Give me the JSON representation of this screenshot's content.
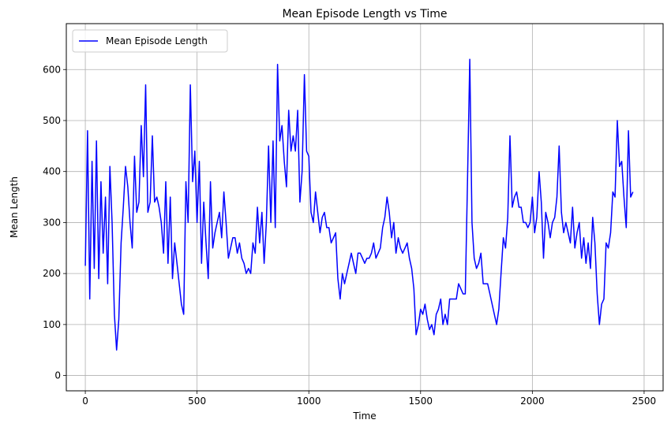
{
  "chart_data": {
    "type": "line",
    "title": "Mean Episode Length vs Time",
    "xlabel": "Time",
    "ylabel": "Mean Length",
    "xlim": [
      -85,
      2585
    ],
    "ylim": [
      -30,
      690
    ],
    "xticks": [
      0,
      500,
      1000,
      1500,
      2000,
      2500
    ],
    "yticks": [
      0,
      100,
      200,
      300,
      400,
      500,
      600
    ],
    "grid": true,
    "legend_position": "upper-left",
    "colors": {
      "line": "#0000ff",
      "grid": "#b0b0b0"
    },
    "series": [
      {
        "name": "Mean Episode Length",
        "x_start": 0,
        "x_step": 10,
        "values": [
          215,
          480,
          150,
          420,
          210,
          460,
          190,
          380,
          240,
          350,
          180,
          410,
          300,
          120,
          50,
          110,
          260,
          330,
          410,
          370,
          300,
          250,
          430,
          320,
          340,
          490,
          390,
          570,
          320,
          340,
          470,
          340,
          350,
          330,
          300,
          240,
          380,
          220,
          350,
          190,
          260,
          220,
          180,
          140,
          120,
          380,
          300,
          570,
          380,
          440,
          300,
          420,
          220,
          340,
          260,
          190,
          380,
          250,
          280,
          300,
          320,
          270,
          360,
          300,
          230,
          250,
          270,
          270,
          240,
          260,
          230,
          220,
          200,
          210,
          200,
          260,
          240,
          330,
          260,
          320,
          220,
          300,
          450,
          300,
          460,
          290,
          610,
          460,
          490,
          420,
          370,
          520,
          440,
          470,
          440,
          520,
          340,
          400,
          590,
          440,
          430,
          320,
          300,
          360,
          320,
          280,
          310,
          320,
          290,
          290,
          260,
          270,
          280,
          190,
          150,
          200,
          180,
          200,
          220,
          240,
          220,
          200,
          240,
          240,
          230,
          220,
          230,
          230,
          240,
          260,
          230,
          240,
          250,
          290,
          310,
          350,
          320,
          270,
          300,
          240,
          270,
          250,
          240,
          250,
          260,
          230,
          210,
          170,
          80,
          100,
          130,
          120,
          140,
          110,
          90,
          100,
          80,
          120,
          130,
          150,
          100,
          120,
          100,
          150,
          150,
          150,
          150,
          180,
          170,
          160,
          160,
          380,
          620,
          300,
          230,
          210,
          220,
          240,
          180,
          180,
          180,
          160,
          140,
          120,
          100,
          130,
          200,
          270,
          250,
          310,
          470,
          330,
          350,
          360,
          330,
          330,
          300,
          300,
          290,
          300,
          350,
          280,
          310,
          400,
          340,
          230,
          320,
          300,
          270,
          300,
          310,
          350,
          450,
          320,
          280,
          300,
          280,
          260,
          330,
          250,
          280,
          300,
          230,
          270,
          220,
          260,
          210,
          310,
          260,
          160,
          100,
          140,
          150,
          260,
          250,
          280,
          360,
          350,
          500,
          410,
          420,
          350,
          290,
          480,
          350,
          360
        ]
      }
    ]
  }
}
